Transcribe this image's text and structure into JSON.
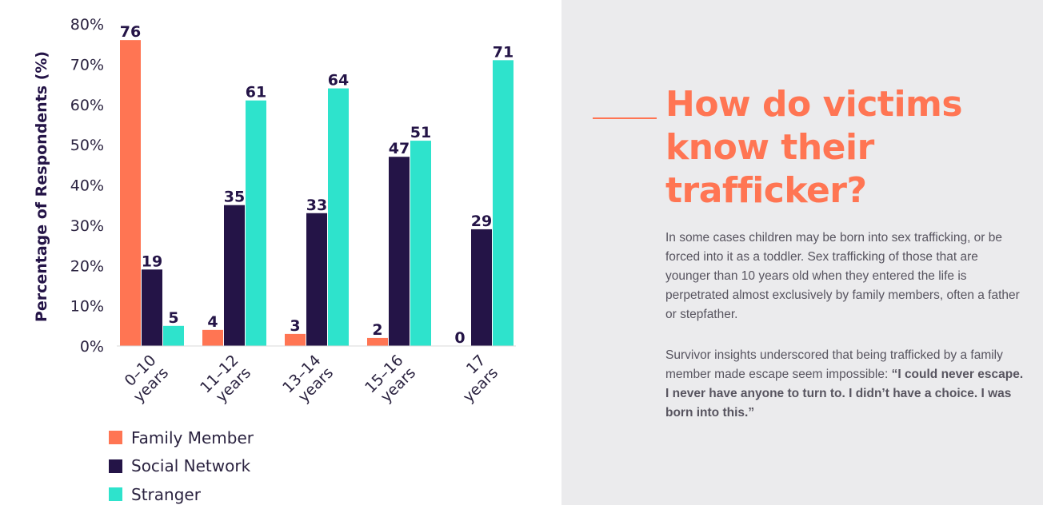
{
  "chart_data": {
    "type": "bar",
    "categories": [
      "0–10 years",
      "11–12 years",
      "13–14 years",
      "15–16 years",
      "17 years"
    ],
    "series": [
      {
        "name": "Family Member",
        "color": "#ff7553",
        "values": [
          76,
          4,
          3,
          2,
          0
        ]
      },
      {
        "name": "Social Network",
        "color": "#241447",
        "values": [
          19,
          35,
          33,
          47,
          29
        ]
      },
      {
        "name": "Stranger",
        "color": "#2ee3cc",
        "values": [
          5,
          61,
          64,
          51,
          71
        ]
      }
    ],
    "ylabel": "Percentage of Respondents (%)",
    "yticks": [
      "0%",
      "10%",
      "20%",
      "30%",
      "40%",
      "50%",
      "60%",
      "70%",
      "80%"
    ],
    "ylim": [
      0,
      80
    ],
    "grid": false,
    "legend_position": "bottom-left"
  },
  "article": {
    "heading": "How do victims know their trafficker?",
    "paragraph1": "In some cases children may be born into sex trafficking, or be forced into it as a toddler. Sex trafficking of those that are younger than 10 years old when they entered the life is perpetrated almost exclusively by family members, often a father or stepfather.",
    "paragraph2_intro": "Survivor insights underscored that being trafficked by a family member made escape seem impossible: ",
    "paragraph2_quote": "“I could never escape. I never have anyone to turn to. I didn’t have a choice. I was born into this.”"
  },
  "colors": {
    "accent": "#ff7553",
    "panel_bg": "#ebebed",
    "text_dark": "#241447"
  }
}
